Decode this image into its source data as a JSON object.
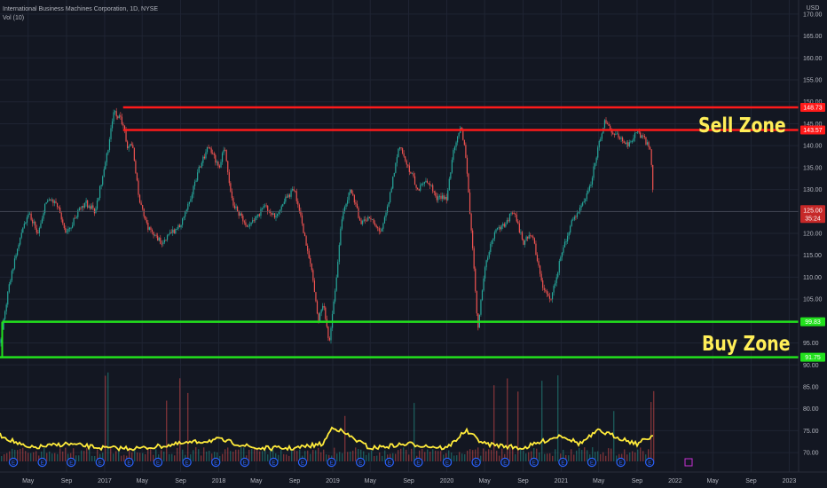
{
  "legend": {
    "title": "International Business Machines Corporation, 1D, NYSE",
    "volume": "Vol (10)"
  },
  "currency": "USD",
  "zones": {
    "sell_label": "Sell Zone",
    "buy_label": "Buy Zone"
  },
  "price_badge": {
    "value": "125.00",
    "countdown": "35:24"
  },
  "colors": {
    "background": "#131722",
    "sell_line": "#ff1a1a",
    "buy_line": "#22e11d",
    "up_candle": "#26a69a",
    "down_candle": "#ef5350",
    "volume_line": "#ffeb3b",
    "zone_text": "#ffee58",
    "earnings_marker": "#2962ff"
  },
  "chart_data": {
    "type": "line",
    "title": "International Business Machines Corporation, 1D, NYSE",
    "xlabel": "",
    "ylabel": "USD",
    "ylim": [
      68,
      172
    ],
    "xlim": [
      "2016-02-01",
      "2023-01-31"
    ],
    "grid": true,
    "y_ticks": [
      "70.00",
      "75.00",
      "80.00",
      "85.00",
      "90.00",
      "95.00",
      "100.00",
      "105.00",
      "110.00",
      "115.00",
      "120.00",
      "125.00",
      "130.00",
      "135.00",
      "140.00",
      "145.00",
      "150.00",
      "155.00",
      "160.00",
      "165.00",
      "170.00"
    ],
    "x_ticks": [
      {
        "label": "May",
        "date": "2016-05-01"
      },
      {
        "label": "Sep",
        "date": "2016-09-01"
      },
      {
        "label": "2017",
        "date": "2017-01-01"
      },
      {
        "label": "May",
        "date": "2017-05-01"
      },
      {
        "label": "Sep",
        "date": "2017-09-01"
      },
      {
        "label": "2018",
        "date": "2018-01-01"
      },
      {
        "label": "May",
        "date": "2018-05-01"
      },
      {
        "label": "Sep",
        "date": "2018-09-01"
      },
      {
        "label": "2019",
        "date": "2019-01-01"
      },
      {
        "label": "May",
        "date": "2019-05-01"
      },
      {
        "label": "Sep",
        "date": "2019-09-01"
      },
      {
        "label": "2020",
        "date": "2020-01-01"
      },
      {
        "label": "May",
        "date": "2020-05-01"
      },
      {
        "label": "Sep",
        "date": "2020-09-01"
      },
      {
        "label": "2021",
        "date": "2021-01-01"
      },
      {
        "label": "May",
        "date": "2021-05-01"
      },
      {
        "label": "Sep",
        "date": "2021-09-01"
      },
      {
        "label": "2022",
        "date": "2022-01-01"
      },
      {
        "label": "May",
        "date": "2022-05-01"
      },
      {
        "label": "Sep",
        "date": "2022-09-01"
      },
      {
        "label": "2023",
        "date": "2023-01-01"
      }
    ],
    "series": [
      {
        "name": "",
        "style": "candles",
        "x": [
          "2016-02-01",
          "2016-03-01",
          "2016-04-01",
          "2016-05-01",
          "2016-06-01",
          "2016-07-01",
          "2016-08-01",
          "2016-09-01",
          "2016-10-01",
          "2016-11-01",
          "2016-12-01",
          "2017-01-01",
          "2017-02-01",
          "2017-03-01",
          "2017-03-15",
          "2017-04-01",
          "2017-04-20",
          "2017-05-15",
          "2017-06-01",
          "2017-07-01",
          "2017-08-01",
          "2017-09-01",
          "2017-10-01",
          "2017-11-01",
          "2017-12-01",
          "2018-01-01",
          "2018-01-20",
          "2018-02-10",
          "2018-03-01",
          "2018-04-01",
          "2018-05-01",
          "2018-06-01",
          "2018-07-01",
          "2018-08-01",
          "2018-09-01",
          "2018-10-01",
          "2018-10-25",
          "2018-11-15",
          "2018-12-01",
          "2018-12-20",
          "2019-01-10",
          "2019-02-01",
          "2019-03-01",
          "2019-04-01",
          "2019-05-01",
          "2019-06-01",
          "2019-07-01",
          "2019-08-01",
          "2019-09-01",
          "2019-10-01",
          "2019-11-01",
          "2019-12-01",
          "2020-01-01",
          "2020-01-25",
          "2020-02-15",
          "2020-03-01",
          "2020-03-20",
          "2020-04-10",
          "2020-05-01",
          "2020-06-01",
          "2020-07-01",
          "2020-08-01",
          "2020-09-01",
          "2020-10-01",
          "2020-11-01",
          "2020-12-01",
          "2021-01-01",
          "2021-02-01",
          "2021-03-01",
          "2021-04-01",
          "2021-05-01",
          "2021-05-20",
          "2021-06-10",
          "2021-07-01",
          "2021-08-01",
          "2021-09-01",
          "2021-09-20",
          "2021-10-05",
          "2021-10-15",
          "2021-10-25"
        ],
        "values": [
          95,
          108,
          118,
          125,
          120,
          128,
          127,
          120,
          124,
          127,
          125,
          135,
          148,
          145,
          140,
          140,
          128,
          122,
          120,
          118,
          120,
          122,
          128,
          135,
          140,
          135,
          140,
          128,
          125,
          122,
          124,
          126,
          124,
          128,
          130,
          120,
          112,
          100,
          104,
          95,
          108,
          125,
          130,
          122,
          124,
          120,
          128,
          140,
          135,
          130,
          132,
          128,
          128,
          140,
          145,
          138,
          120,
          98,
          112,
          120,
          122,
          125,
          118,
          120,
          108,
          105,
          115,
          122,
          126,
          130,
          140,
          146,
          143,
          142,
          140,
          143,
          142,
          140,
          138,
          125
        ]
      },
      {
        "name": "",
        "style": "volume",
        "x": [
          "2016-02-01",
          "2016-05-01",
          "2016-09-01",
          "2017-01-01",
          "2017-05-01",
          "2017-09-01",
          "2018-01-01",
          "2018-05-01",
          "2018-09-01",
          "2018-12-01",
          "2019-01-01",
          "2019-05-01",
          "2019-09-01",
          "2020-01-01",
          "2020-03-01",
          "2020-05-01",
          "2020-09-01",
          "2021-01-01",
          "2021-03-01",
          "2021-05-01",
          "2021-09-01",
          "2021-10-25"
        ],
        "values": [
          74,
          71,
          72,
          71,
          71,
          72,
          73,
          71,
          71,
          72,
          76,
          71,
          72,
          71,
          75,
          72,
          71,
          74,
          72,
          75,
          72,
          74
        ]
      }
    ]
  },
  "levels": [
    {
      "name": "sell-zone-top",
      "value": 148.73,
      "label": "148.73",
      "kind": "sell",
      "start": "2017-03-01"
    },
    {
      "name": "sell-zone-bottom",
      "value": 143.57,
      "label": "143.57",
      "kind": "sell",
      "start": "2017-03-01"
    },
    {
      "name": "buy-zone-top",
      "value": 99.83,
      "label": "99.83",
      "kind": "buy",
      "start": "2016-02-08"
    },
    {
      "name": "buy-zone-bottom",
      "value": 91.75,
      "label": "91.75",
      "kind": "buy",
      "start": "2016-02-01"
    }
  ]
}
